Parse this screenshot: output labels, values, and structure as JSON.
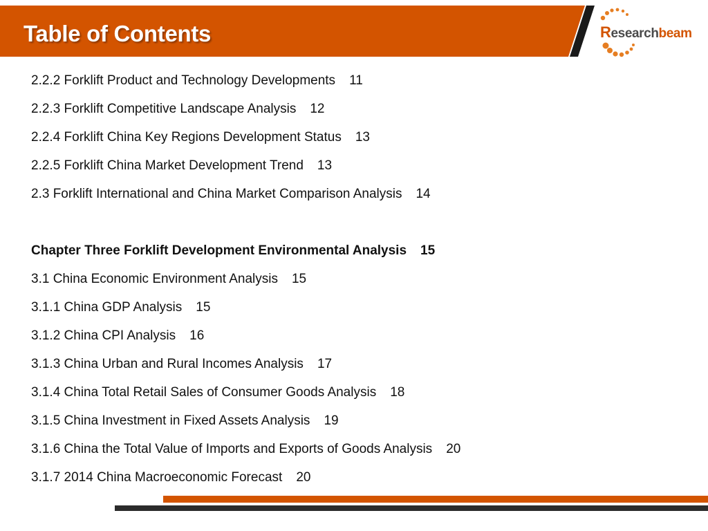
{
  "header": {
    "title": "Table of Contents",
    "band_color": "#d35400",
    "stripe_color": "#1a1a1a"
  },
  "logo": {
    "prefix": "R",
    "middle": "esearch",
    "suffix": "beam",
    "icon": "dotted-arc-logo"
  },
  "toc": {
    "entries": [
      {
        "text": "2.2.2 Forklift Product and Technology Developments",
        "page": "11",
        "bold": false
      },
      {
        "text": "2.2.3 Forklift Competitive Landscape Analysis",
        "page": "12",
        "bold": false
      },
      {
        "text": "2.2.4 Forklift China Key Regions Development Status",
        "page": "13",
        "bold": false
      },
      {
        "text": "2.2.5 Forklift China Market Development Trend",
        "page": "13",
        "bold": false
      },
      {
        "text": "2.3 Forklift International and China Market Comparison Analysis",
        "page": "14",
        "bold": false
      },
      {
        "text": "",
        "page": "",
        "bold": false,
        "spacer": true
      },
      {
        "text": "Chapter Three Forklift Development Environmental Analysis",
        "page": "15",
        "bold": true
      },
      {
        "text": "3.1 China Economic Environment Analysis",
        "page": "15",
        "bold": false
      },
      {
        "text": "3.1.1 China GDP Analysis",
        "page": "15",
        "bold": false
      },
      {
        "text": "3.1.2 China CPI Analysis",
        "page": "16",
        "bold": false
      },
      {
        "text": "3.1.3 China Urban and Rural Incomes Analysis",
        "page": "17",
        "bold": false
      },
      {
        "text": "3.1.4 China Total Retail Sales of Consumer Goods Analysis",
        "page": "18",
        "bold": false
      },
      {
        "text": "3.1.5 China Investment in Fixed Assets Analysis",
        "page": "19",
        "bold": false
      },
      {
        "text": "3.1.6 China the Total Value of Imports and Exports of Goods Analysis",
        "page": "20",
        "bold": false
      },
      {
        "text": "3.1.7 2014 China Macroeconomic Forecast",
        "page": "20",
        "bold": false
      }
    ]
  },
  "footer": {
    "orange_rule_color": "#d35400",
    "dark_rule_color": "#2b2b2b"
  }
}
